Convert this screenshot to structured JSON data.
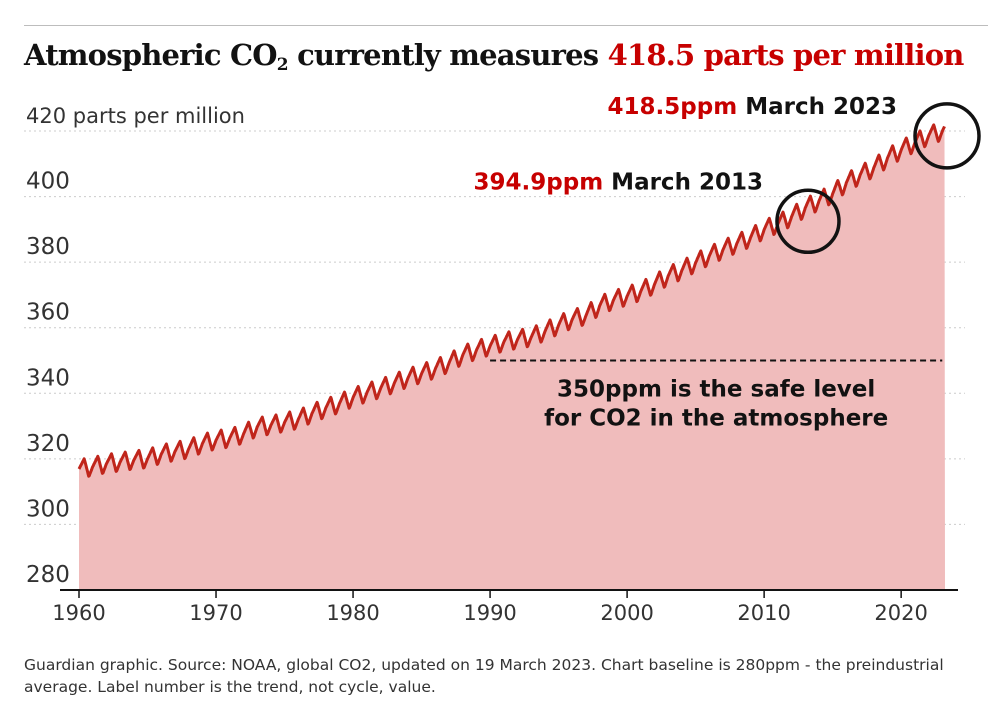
{
  "title": {
    "prefix": "Atmospheric CO",
    "subscript": "2",
    "middle": " currently measures ",
    "highlight": "418.5 parts per million"
  },
  "colors": {
    "accent": "#c70000",
    "line": "#c0251b",
    "area": "#f0bcbc",
    "circle": "#121212",
    "text": "#121212",
    "grid": "#cccccc"
  },
  "chart_data": {
    "type": "area",
    "series": [
      {
        "values_by_year": {
          "x": [
            1960,
            1961,
            1962,
            1963,
            1964,
            1965,
            1966,
            1967,
            1968,
            1969,
            1970,
            1971,
            1972,
            1973,
            1974,
            1975,
            1976,
            1977,
            1978,
            1979,
            1980,
            1981,
            1982,
            1983,
            1984,
            1985,
            1986,
            1987,
            1988,
            1989,
            1990,
            1991,
            1992,
            1993,
            1994,
            1995,
            1996,
            1997,
            1998,
            1999,
            2000,
            2001,
            2002,
            2003,
            2004,
            2005,
            2006,
            2007,
            2008,
            2009,
            2010,
            2011,
            2012,
            2013,
            2014,
            2015,
            2016,
            2017,
            2018,
            2019,
            2020,
            2021,
            2022,
            2023.2
          ],
          "y": [
            316.9,
            317.6,
            318.5,
            319.0,
            319.6,
            320.0,
            321.4,
            322.2,
            323.0,
            324.6,
            325.7,
            326.3,
            327.5,
            329.7,
            330.2,
            331.1,
            332.0,
            333.8,
            335.4,
            336.8,
            338.7,
            340.1,
            341.4,
            343.0,
            344.6,
            346.0,
            347.4,
            349.2,
            351.6,
            353.1,
            354.4,
            355.6,
            356.4,
            357.1,
            358.8,
            360.8,
            362.6,
            363.7,
            366.7,
            368.4,
            369.6,
            371.1,
            373.2,
            375.8,
            377.5,
            379.8,
            381.9,
            383.8,
            385.6,
            387.4,
            389.9,
            391.6,
            393.8,
            396.5,
            398.6,
            400.8,
            404.2,
            406.5,
            408.7,
            411.7,
            414.2,
            416.4,
            418.5,
            420.2
          ]
        },
        "seasonal_amplitude": 3.2
      }
    ],
    "xlim": [
      1960,
      2023.2
    ],
    "ylim": [
      280,
      420
    ],
    "y_ticks": [
      280,
      300,
      320,
      340,
      360,
      380,
      400,
      420
    ],
    "y_tick_labels": [
      "280",
      "300",
      "320",
      "340",
      "360",
      "380",
      "400",
      "420 parts per million"
    ],
    "x_ticks": [
      1960,
      1970,
      1980,
      1990,
      2000,
      2010,
      2020
    ],
    "x_tick_labels": [
      "1960",
      "1970",
      "1980",
      "1990",
      "2000",
      "2010",
      "2020"
    ],
    "grid": "horizontal dotted",
    "baseline": 280,
    "reference_line": {
      "y": 350,
      "x_start": 1990,
      "x_end": 2023,
      "label_lines": [
        "350ppm is the safe level",
        "for CO2 in the atmosphere"
      ]
    },
    "annotations": [
      {
        "year": 2013.2,
        "value": 394.9,
        "value_text": "394.9ppm",
        "date_text": " March 2013"
      },
      {
        "year": 2023.2,
        "value": 418.5,
        "value_text": "418.5ppm",
        "date_text": " March 2023"
      }
    ]
  },
  "footnote": "Guardian graphic. Source: NOAA, global CO2, updated on 19 March 2023. Chart baseline is 280ppm - the preindustrial average. Label number is the trend, not cycle, value."
}
